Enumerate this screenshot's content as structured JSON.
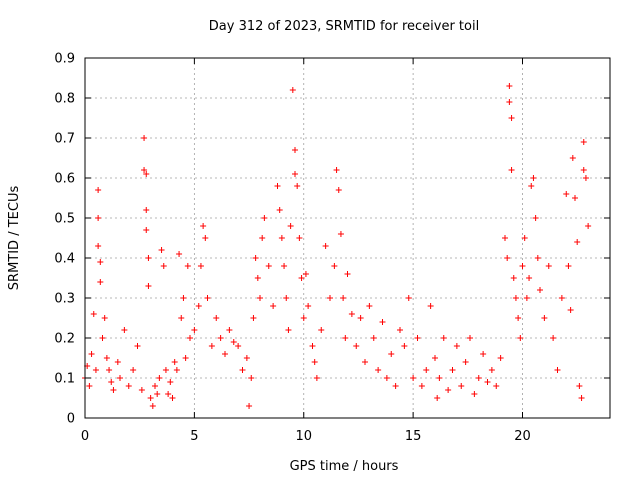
{
  "chart_data": {
    "type": "scatter",
    "title": "Day 312 of 2023, SRMTID for receiver toil",
    "xlabel": "GPS time / hours",
    "ylabel": "SRMTID / TECUs",
    "xlim": [
      0,
      24
    ],
    "ylim": [
      0,
      0.9
    ],
    "xticks": [
      0,
      5,
      10,
      15,
      20
    ],
    "yticks": [
      0,
      0.1,
      0.2,
      0.3,
      0.4,
      0.5,
      0.6,
      0.7,
      0.8,
      0.9
    ],
    "xtick_labels": [
      "0",
      "5",
      "10",
      "15",
      "20"
    ],
    "ytick_labels": [
      "0",
      "0.1",
      "0.2",
      "0.3",
      "0.4",
      "0.5",
      "0.6",
      "0.7",
      "0.8",
      "0.9"
    ],
    "grid": true,
    "marker": "+",
    "series": [
      {
        "name": "SRMTID",
        "color": "#ff0000",
        "points": [
          [
            0.0,
            0.1
          ],
          [
            0.1,
            0.13
          ],
          [
            0.2,
            0.08
          ],
          [
            0.3,
            0.16
          ],
          [
            0.4,
            0.26
          ],
          [
            0.5,
            0.12
          ],
          [
            0.6,
            0.57
          ],
          [
            0.6,
            0.5
          ],
          [
            0.6,
            0.43
          ],
          [
            0.7,
            0.34
          ],
          [
            0.7,
            0.39
          ],
          [
            0.8,
            0.2
          ],
          [
            0.9,
            0.25
          ],
          [
            1.0,
            0.15
          ],
          [
            1.1,
            0.12
          ],
          [
            1.2,
            0.09
          ],
          [
            1.3,
            0.07
          ],
          [
            1.5,
            0.14
          ],
          [
            1.6,
            0.1
          ],
          [
            1.8,
            0.22
          ],
          [
            2.0,
            0.08
          ],
          [
            2.2,
            0.12
          ],
          [
            2.4,
            0.18
          ],
          [
            2.6,
            0.07
          ],
          [
            2.7,
            0.7
          ],
          [
            2.7,
            0.62
          ],
          [
            2.8,
            0.61
          ],
          [
            2.8,
            0.52
          ],
          [
            2.8,
            0.47
          ],
          [
            2.9,
            0.4
          ],
          [
            2.9,
            0.33
          ],
          [
            3.0,
            0.05
          ],
          [
            3.1,
            0.03
          ],
          [
            3.2,
            0.08
          ],
          [
            3.3,
            0.06
          ],
          [
            3.4,
            0.1
          ],
          [
            3.5,
            0.42
          ],
          [
            3.6,
            0.38
          ],
          [
            3.7,
            0.12
          ],
          [
            3.8,
            0.06
          ],
          [
            3.9,
            0.09
          ],
          [
            4.0,
            0.05
          ],
          [
            4.1,
            0.14
          ],
          [
            4.2,
            0.12
          ],
          [
            4.3,
            0.41
          ],
          [
            4.4,
            0.25
          ],
          [
            4.5,
            0.3
          ],
          [
            4.6,
            0.15
          ],
          [
            4.7,
            0.38
          ],
          [
            4.8,
            0.2
          ],
          [
            5.0,
            0.22
          ],
          [
            5.2,
            0.28
          ],
          [
            5.3,
            0.38
          ],
          [
            5.4,
            0.48
          ],
          [
            5.5,
            0.45
          ],
          [
            5.6,
            0.3
          ],
          [
            5.8,
            0.18
          ],
          [
            6.0,
            0.25
          ],
          [
            6.2,
            0.2
          ],
          [
            6.4,
            0.16
          ],
          [
            6.6,
            0.22
          ],
          [
            6.8,
            0.19
          ],
          [
            7.0,
            0.18
          ],
          [
            7.2,
            0.12
          ],
          [
            7.4,
            0.15
          ],
          [
            7.5,
            0.03
          ],
          [
            7.6,
            0.1
          ],
          [
            7.7,
            0.25
          ],
          [
            7.8,
            0.4
          ],
          [
            7.9,
            0.35
          ],
          [
            8.0,
            0.3
          ],
          [
            8.1,
            0.45
          ],
          [
            8.2,
            0.5
          ],
          [
            8.4,
            0.38
          ],
          [
            8.6,
            0.28
          ],
          [
            8.8,
            0.58
          ],
          [
            8.9,
            0.52
          ],
          [
            9.0,
            0.45
          ],
          [
            9.1,
            0.38
          ],
          [
            9.2,
            0.3
          ],
          [
            9.3,
            0.22
          ],
          [
            9.4,
            0.48
          ],
          [
            9.5,
            0.82
          ],
          [
            9.6,
            0.67
          ],
          [
            9.6,
            0.61
          ],
          [
            9.7,
            0.58
          ],
          [
            9.8,
            0.45
          ],
          [
            9.9,
            0.35
          ],
          [
            10.0,
            0.25
          ],
          [
            10.1,
            0.36
          ],
          [
            10.2,
            0.28
          ],
          [
            10.4,
            0.18
          ],
          [
            10.5,
            0.14
          ],
          [
            10.6,
            0.1
          ],
          [
            10.8,
            0.22
          ],
          [
            11.0,
            0.43
          ],
          [
            11.2,
            0.3
          ],
          [
            11.4,
            0.38
          ],
          [
            11.5,
            0.62
          ],
          [
            11.6,
            0.57
          ],
          [
            11.7,
            0.46
          ],
          [
            11.8,
            0.3
          ],
          [
            11.9,
            0.2
          ],
          [
            12.0,
            0.36
          ],
          [
            12.2,
            0.26
          ],
          [
            12.4,
            0.18
          ],
          [
            12.6,
            0.25
          ],
          [
            12.8,
            0.14
          ],
          [
            13.0,
            0.28
          ],
          [
            13.2,
            0.2
          ],
          [
            13.4,
            0.12
          ],
          [
            13.6,
            0.24
          ],
          [
            13.8,
            0.1
          ],
          [
            14.0,
            0.16
          ],
          [
            14.2,
            0.08
          ],
          [
            14.4,
            0.22
          ],
          [
            14.6,
            0.18
          ],
          [
            14.8,
            0.3
          ],
          [
            15.0,
            0.1
          ],
          [
            15.2,
            0.2
          ],
          [
            15.4,
            0.08
          ],
          [
            15.6,
            0.12
          ],
          [
            15.8,
            0.28
          ],
          [
            16.0,
            0.15
          ],
          [
            16.1,
            0.05
          ],
          [
            16.2,
            0.1
          ],
          [
            16.4,
            0.2
          ],
          [
            16.6,
            0.07
          ],
          [
            16.8,
            0.12
          ],
          [
            17.0,
            0.18
          ],
          [
            17.2,
            0.08
          ],
          [
            17.4,
            0.14
          ],
          [
            17.6,
            0.2
          ],
          [
            17.8,
            0.06
          ],
          [
            18.0,
            0.1
          ],
          [
            18.2,
            0.16
          ],
          [
            18.4,
            0.09
          ],
          [
            18.6,
            0.12
          ],
          [
            18.8,
            0.08
          ],
          [
            19.0,
            0.15
          ],
          [
            19.2,
            0.45
          ],
          [
            19.3,
            0.4
          ],
          [
            19.4,
            0.83
          ],
          [
            19.4,
            0.79
          ],
          [
            19.5,
            0.75
          ],
          [
            19.5,
            0.62
          ],
          [
            19.6,
            0.35
          ],
          [
            19.7,
            0.3
          ],
          [
            19.8,
            0.25
          ],
          [
            19.9,
            0.2
          ],
          [
            20.0,
            0.38
          ],
          [
            20.1,
            0.45
          ],
          [
            20.2,
            0.3
          ],
          [
            20.3,
            0.35
          ],
          [
            20.4,
            0.58
          ],
          [
            20.5,
            0.6
          ],
          [
            20.6,
            0.5
          ],
          [
            20.7,
            0.4
          ],
          [
            20.8,
            0.32
          ],
          [
            21.0,
            0.25
          ],
          [
            21.2,
            0.38
          ],
          [
            21.4,
            0.2
          ],
          [
            21.6,
            0.12
          ],
          [
            21.8,
            0.3
          ],
          [
            22.0,
            0.56
          ],
          [
            22.1,
            0.38
          ],
          [
            22.2,
            0.27
          ],
          [
            22.3,
            0.65
          ],
          [
            22.4,
            0.55
          ],
          [
            22.5,
            0.44
          ],
          [
            22.6,
            0.08
          ],
          [
            22.7,
            0.05
          ],
          [
            22.8,
            0.62
          ],
          [
            22.8,
            0.69
          ],
          [
            22.9,
            0.6
          ],
          [
            23.0,
            0.48
          ]
        ]
      }
    ]
  }
}
